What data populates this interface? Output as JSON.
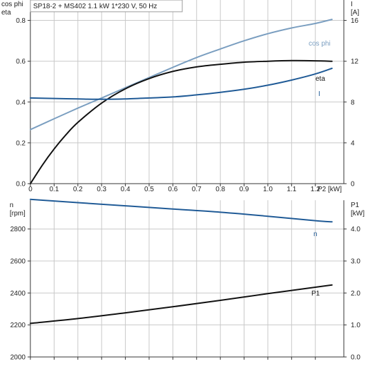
{
  "chart_data": [
    {
      "type": "line",
      "title": "SP18-2 + MS402   1.1 kW   1*230 V, 50 Hz",
      "xlabel": "P2 [kW]",
      "x_ticks": [
        "0",
        "0.1",
        "0.2",
        "0.3",
        "0.4",
        "0.5",
        "0.6",
        "0.7",
        "0.8",
        "0.9",
        "1.0",
        "1.1",
        "1.2"
      ],
      "xlim": [
        0,
        1.32
      ],
      "ylabel_left": [
        "cos phi",
        "eta"
      ],
      "ylim_left": [
        0,
        0.9
      ],
      "y_ticks_left": [
        "0.0",
        "0.2",
        "0.4",
        "0.6",
        "0.8"
      ],
      "ylabel_right": [
        "I",
        "[A]"
      ],
      "ylim_right": [
        0,
        18
      ],
      "y_ticks_right": [
        "0",
        "4",
        "8",
        "12",
        "16"
      ],
      "grid": true,
      "series": [
        {
          "name": "cos phi",
          "axis": "left",
          "color": "#7a9ec0",
          "x": [
            0,
            0.1,
            0.2,
            0.3,
            0.4,
            0.5,
            0.6,
            0.7,
            0.8,
            0.9,
            1.0,
            1.1,
            1.2,
            1.27
          ],
          "y": [
            0.265,
            0.318,
            0.37,
            0.42,
            0.47,
            0.52,
            0.57,
            0.618,
            0.66,
            0.7,
            0.735,
            0.763,
            0.785,
            0.805
          ]
        },
        {
          "name": "eta",
          "axis": "left",
          "color": "#111111",
          "x": [
            0,
            0.05,
            0.1,
            0.15,
            0.2,
            0.3,
            0.4,
            0.5,
            0.6,
            0.7,
            0.8,
            0.9,
            1.0,
            1.1,
            1.2,
            1.27
          ],
          "y": [
            0,
            0.09,
            0.17,
            0.24,
            0.3,
            0.395,
            0.465,
            0.515,
            0.55,
            0.572,
            0.585,
            0.595,
            0.6,
            0.603,
            0.602,
            0.6
          ]
        },
        {
          "name": "I",
          "axis": "right",
          "color": "#1f5a96",
          "x": [
            0,
            0.1,
            0.2,
            0.3,
            0.4,
            0.5,
            0.6,
            0.7,
            0.8,
            0.9,
            1.0,
            1.1,
            1.2,
            1.27
          ],
          "y": [
            8.4,
            8.35,
            8.3,
            8.27,
            8.3,
            8.4,
            8.5,
            8.7,
            8.95,
            9.25,
            9.65,
            10.15,
            10.75,
            11.3
          ]
        }
      ]
    },
    {
      "type": "line",
      "xlim": [
        0,
        1.32
      ],
      "ylabel_left": [
        "n",
        "[rpm]"
      ],
      "ylim_left": [
        2000,
        2980
      ],
      "y_ticks_left": [
        "2000",
        "2200",
        "2400",
        "2600",
        "2800"
      ],
      "ylabel_right": [
        "P1",
        "[kW]"
      ],
      "ylim_right": [
        0,
        4.9
      ],
      "y_ticks_right": [
        "0.0",
        "1.0",
        "2.0",
        "3.0",
        "4.0"
      ],
      "grid": true,
      "series": [
        {
          "name": "n",
          "axis": "left",
          "color": "#1f5a96",
          "x": [
            0,
            0.2,
            0.4,
            0.6,
            0.8,
            1.0,
            1.2,
            1.27
          ],
          "y": [
            2985,
            2965,
            2945,
            2925,
            2905,
            2880,
            2852,
            2845
          ]
        },
        {
          "name": "P1",
          "axis": "right",
          "color": "#111111",
          "x": [
            0,
            0.2,
            0.4,
            0.6,
            0.8,
            1.0,
            1.2,
            1.27
          ],
          "y": [
            1.05,
            1.2,
            1.38,
            1.57,
            1.77,
            1.98,
            2.18,
            2.25
          ]
        }
      ]
    }
  ]
}
